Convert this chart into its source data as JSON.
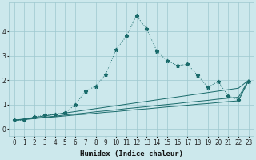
{
  "xlabel": "Humidex (Indice chaleur)",
  "background_color": "#cce8ec",
  "grid_color": "#9dc8cf",
  "line_color": "#1a6b6b",
  "x_values": [
    0,
    1,
    2,
    3,
    4,
    5,
    6,
    7,
    8,
    9,
    10,
    11,
    12,
    13,
    14,
    15,
    16,
    17,
    18,
    19,
    20,
    21,
    22,
    23
  ],
  "y_main": [
    0.35,
    0.35,
    0.5,
    0.55,
    0.6,
    0.65,
    1.0,
    1.55,
    1.75,
    2.25,
    3.25,
    3.8,
    4.65,
    4.1,
    3.2,
    2.8,
    2.6,
    2.65,
    2.2,
    1.7,
    1.95,
    1.35,
    1.2,
    1.95
  ],
  "y_line1": [
    0.35,
    0.38,
    0.42,
    0.46,
    0.49,
    0.53,
    0.57,
    0.6,
    0.64,
    0.68,
    0.71,
    0.75,
    0.79,
    0.82,
    0.86,
    0.9,
    0.93,
    0.97,
    1.01,
    1.04,
    1.08,
    1.12,
    1.15,
    2.0
  ],
  "y_line2": [
    0.35,
    0.39,
    0.44,
    0.48,
    0.52,
    0.57,
    0.61,
    0.65,
    0.7,
    0.74,
    0.78,
    0.83,
    0.87,
    0.91,
    0.96,
    1.0,
    1.04,
    1.09,
    1.13,
    1.17,
    1.22,
    1.26,
    1.3,
    2.0
  ],
  "y_line3": [
    0.35,
    0.41,
    0.47,
    0.53,
    0.59,
    0.65,
    0.71,
    0.77,
    0.83,
    0.89,
    0.95,
    1.01,
    1.07,
    1.13,
    1.19,
    1.25,
    1.31,
    1.37,
    1.43,
    1.49,
    1.55,
    1.61,
    1.67,
    2.0
  ],
  "ylim": [
    -0.3,
    5.2
  ],
  "xlim": [
    -0.5,
    23.5
  ],
  "xtick_labels": [
    "0",
    "1",
    "2",
    "3",
    "4",
    "5",
    "6",
    "7",
    "8",
    "9",
    "10",
    "11",
    "12",
    "13",
    "14",
    "15",
    "16",
    "17",
    "18",
    "19",
    "20",
    "21",
    "22",
    "23"
  ],
  "ytick_values": [
    0,
    1,
    2,
    3,
    4
  ],
  "label_fontsize": 6.5,
  "tick_fontsize": 5.5
}
